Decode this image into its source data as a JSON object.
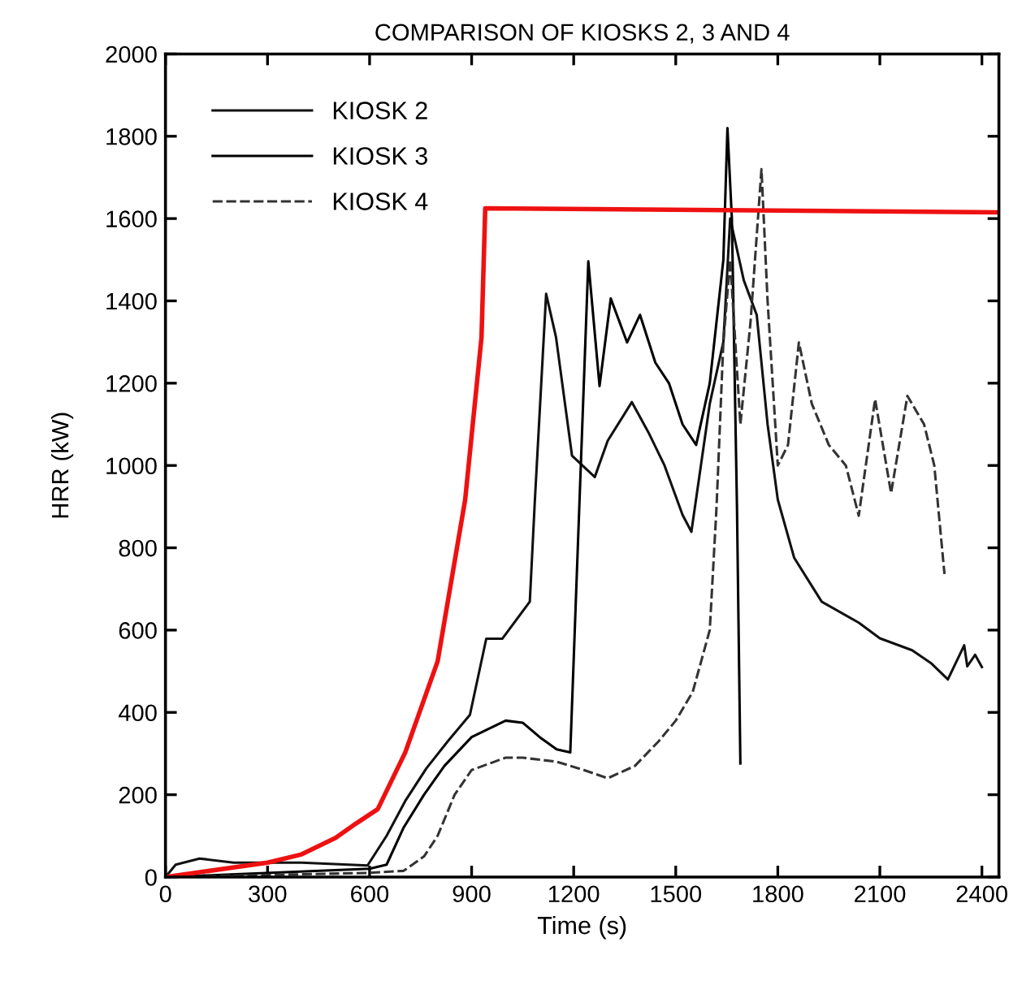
{
  "chart_data": {
    "type": "line",
    "title": "COMPARISON OF KIOSKS 2, 3 AND 4",
    "xlabel": "Time (s)",
    "ylabel": "HRR (kW)",
    "xlim": [
      0,
      2450
    ],
    "ylim": [
      0,
      2000
    ],
    "xticks": [
      0,
      300,
      600,
      900,
      1200,
      1500,
      1800,
      2100,
      2400
    ],
    "yticks": [
      0,
      200,
      400,
      600,
      800,
      1000,
      1200,
      1400,
      1600,
      1800,
      2000
    ],
    "grid": false,
    "legend": "top left",
    "marker": "none",
    "series": [
      {
        "name": "KIOSK 2",
        "color": "#111111",
        "line_style": "solid",
        "x": [
          0,
          30,
          100,
          200,
          400,
          594,
          650,
          705,
          767,
          830,
          895,
          943,
          990,
          1071,
          1086,
          1119,
          1148,
          1195,
          1262,
          1300,
          1371,
          1420,
          1467,
          1520,
          1546,
          1600,
          1640,
          1660,
          1700,
          1738,
          1770,
          1800,
          1848,
          1929,
          2038,
          2100,
          2195,
          2250,
          2300,
          2348,
          2357,
          2380,
          2400
        ],
        "values": [
          0,
          30,
          45,
          35,
          35,
          28,
          100,
          185,
          264,
          330,
          394,
          579,
          579,
          669,
          917,
          1417,
          1312,
          1024,
          972,
          1060,
          1154,
          1080,
          1000,
          880,
          839,
          1150,
          1300,
          1600,
          1450,
          1366,
          1100,
          917,
          776,
          669,
          618,
          580,
          551,
          520,
          480,
          563,
          512,
          540,
          510
        ]
      },
      {
        "name": "KIOSK 3",
        "color": "#000000",
        "line_style": "solid",
        "x": [
          0,
          600,
          650,
          700,
          760,
          820,
          900,
          1000,
          1050,
          1100,
          1150,
          1190,
          1243,
          1276,
          1309,
          1357,
          1395,
          1440,
          1480,
          1520,
          1560,
          1600,
          1640,
          1652,
          1665,
          1680,
          1690
        ],
        "values": [
          0,
          20,
          30,
          120,
          200,
          270,
          340,
          380,
          375,
          340,
          310,
          303,
          1496,
          1193,
          1406,
          1299,
          1366,
          1250,
          1200,
          1100,
          1050,
          1200,
          1500,
          1820,
          1600,
          900,
          276
        ]
      },
      {
        "name": "KIOSK 4",
        "color": "#333333",
        "line_style": "dashed",
        "x": [
          0,
          600,
          700,
          760,
          800,
          850,
          900,
          1000,
          1050,
          1150,
          1230,
          1300,
          1380,
          1450,
          1500,
          1550,
          1600,
          1620,
          1640,
          1660,
          1690,
          1720,
          1752,
          1770,
          1800,
          1830,
          1862,
          1900,
          1950,
          2000,
          2038,
          2086,
          2133,
          2181,
          2230,
          2260,
          2290
        ],
        "values": [
          0,
          10,
          15,
          50,
          100,
          200,
          260,
          290,
          290,
          280,
          260,
          240,
          270,
          330,
          380,
          450,
          600,
          900,
          1300,
          1500,
          1100,
          1350,
          1720,
          1400,
          1000,
          1050,
          1299,
          1150,
          1050,
          1000,
          878,
          1161,
          933,
          1169,
          1100,
          1000,
          736
        ]
      },
      {
        "color": "#ee1111",
        "line_style": "solid",
        "x": [
          0,
          300,
          400,
          500,
          560,
          624,
          705,
          800,
          881,
          929,
          940,
          2450
        ],
        "values": [
          0,
          35,
          55,
          95,
          130,
          165,
          303,
          524,
          917,
          1311,
          1625,
          1615
        ]
      }
    ]
  }
}
